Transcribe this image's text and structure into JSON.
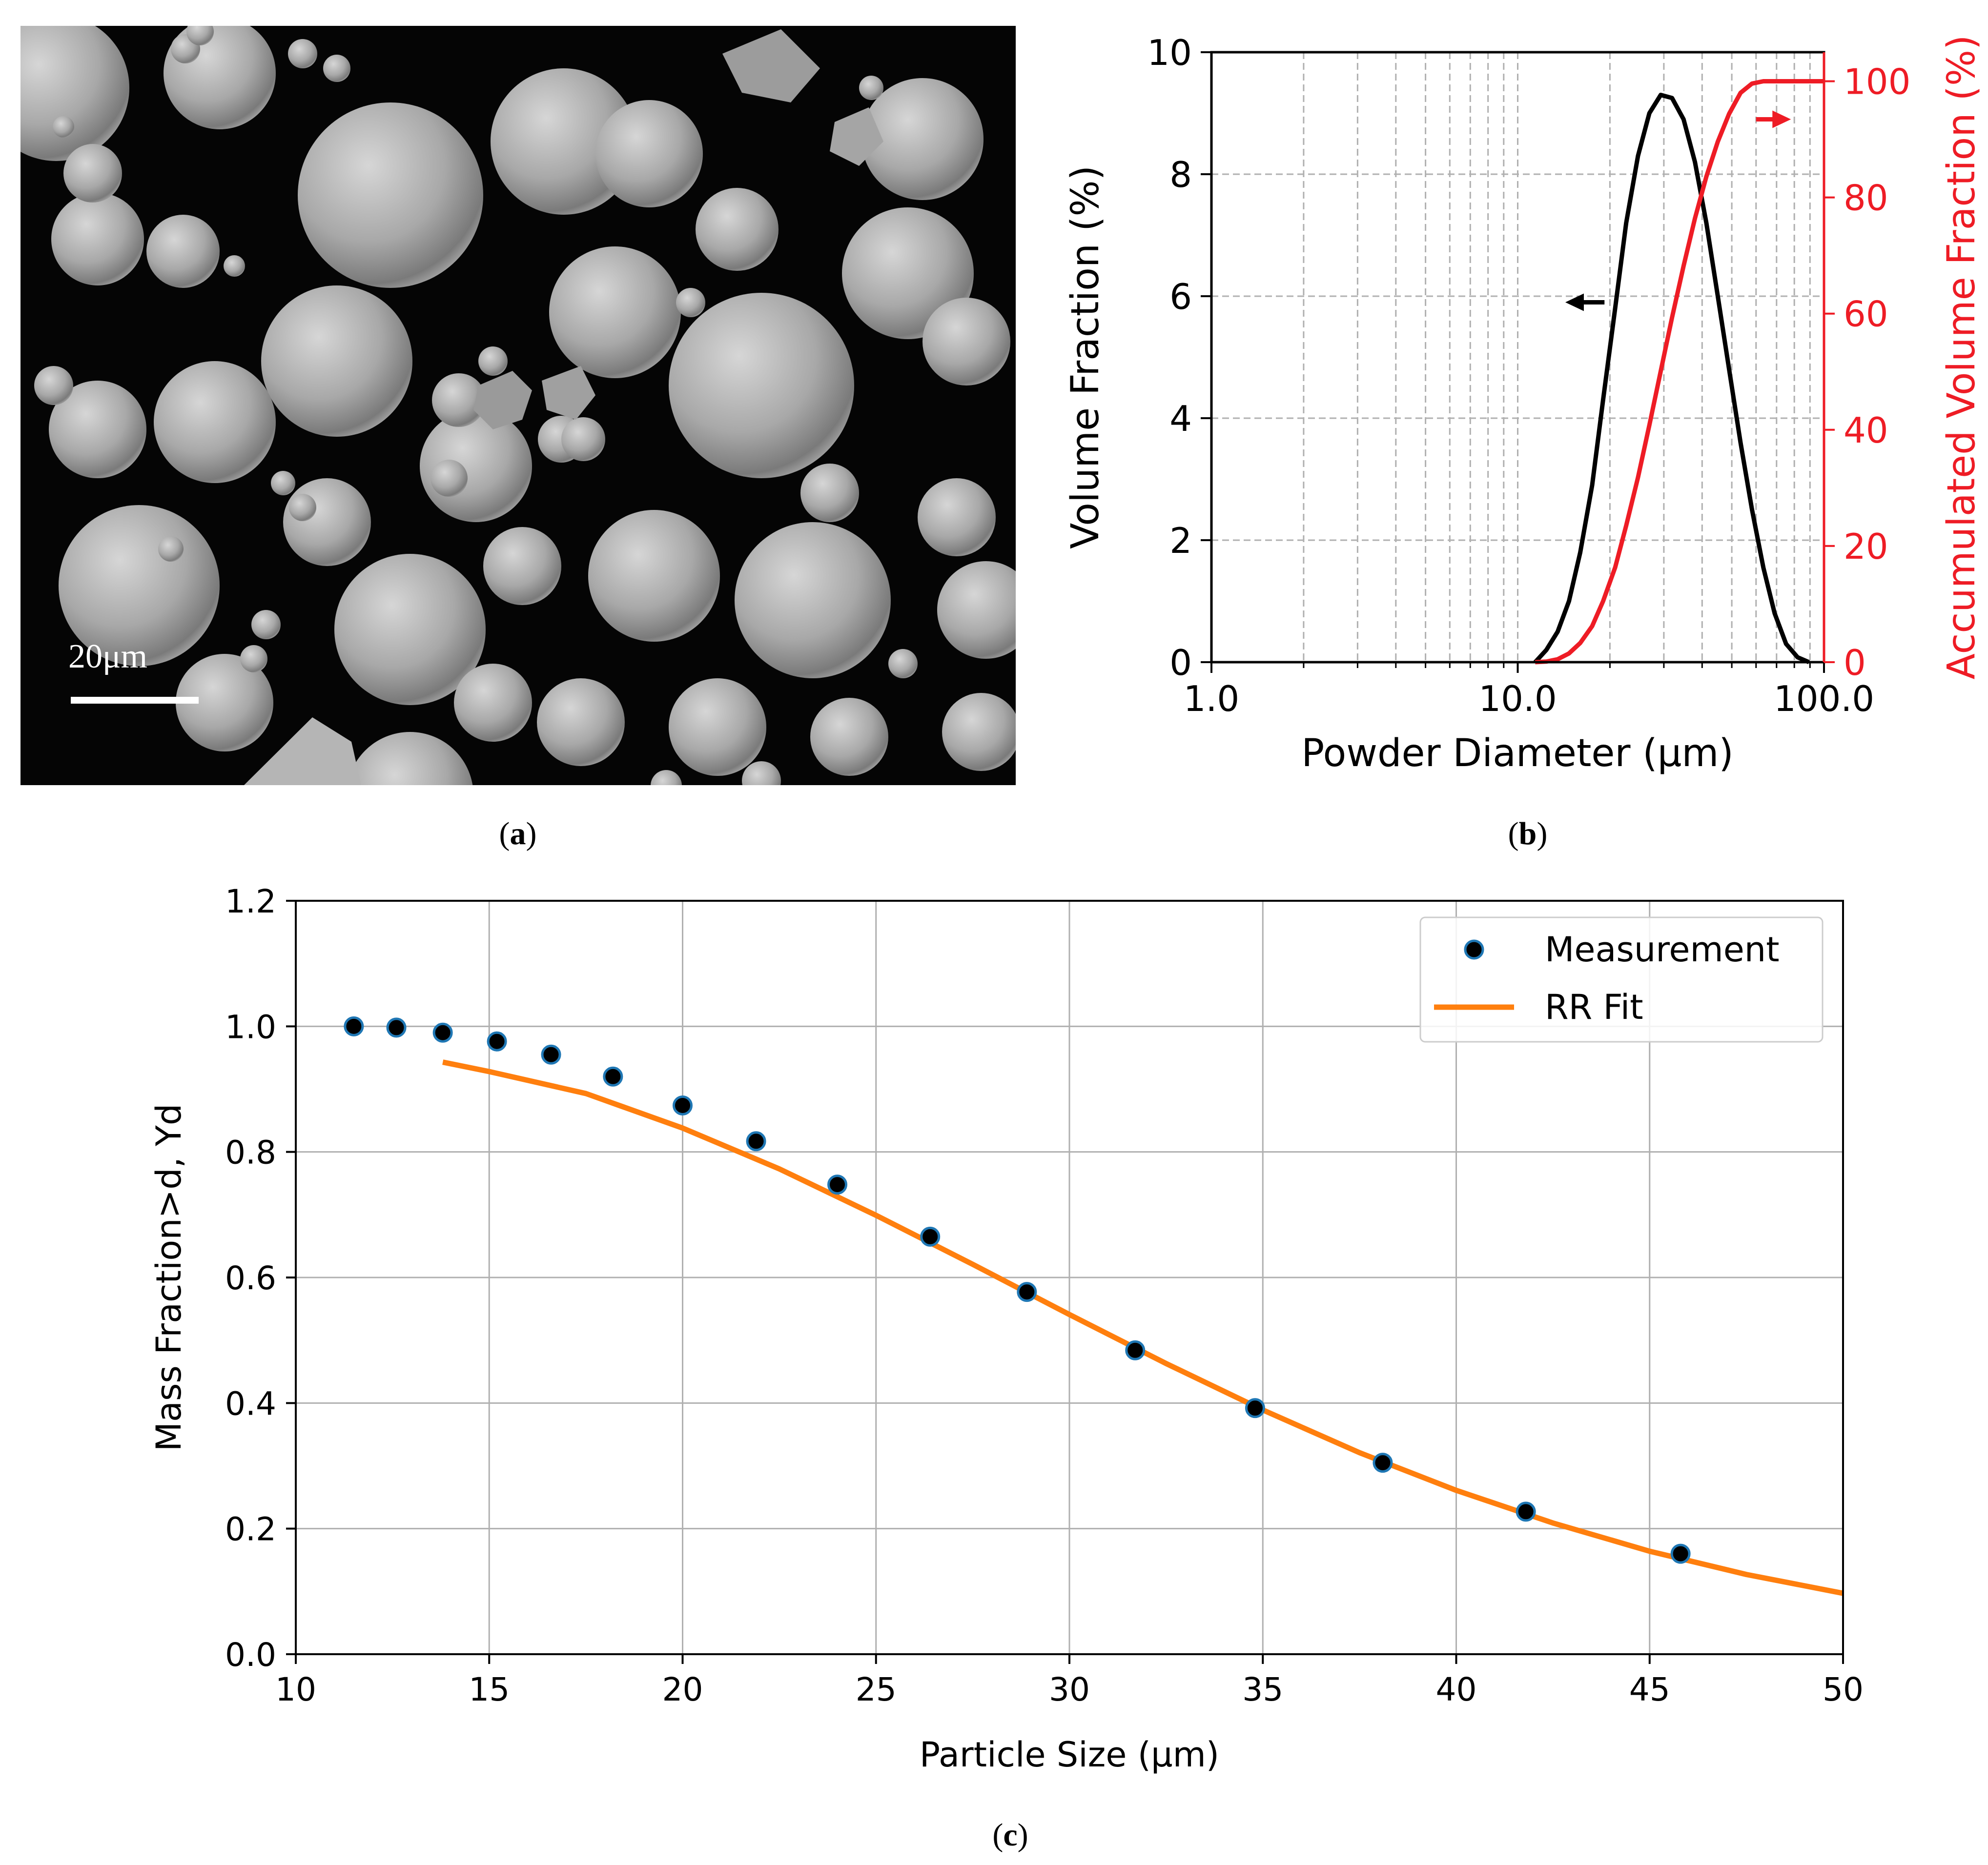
{
  "panels": {
    "a": {
      "label_letter": "a",
      "scale_bar_label": "20μm"
    },
    "b": {
      "label_letter": "b"
    },
    "c": {
      "label_letter": "c"
    }
  },
  "chart_data": [
    {
      "id": "b",
      "type": "line",
      "xscale": "log",
      "xlim": [
        1.0,
        100.0
      ],
      "xticks": [
        1.0,
        10.0,
        100.0
      ],
      "xtick_labels": [
        "1.0",
        "10.0",
        "100.0"
      ],
      "xlabel": "Powder Diameter (μm)",
      "ylabel": "Volume Fraction (%)",
      "ylim": [
        0,
        10
      ],
      "yticks": [
        0,
        2,
        4,
        6,
        8,
        10
      ],
      "ytick_labels": [
        "0",
        "2",
        "4",
        "6",
        "8",
        "10"
      ],
      "y2label": "Accumulated Volume Fraction (%)",
      "y2lim": [
        0,
        105
      ],
      "y2ticks": [
        0,
        20,
        40,
        60,
        80,
        100
      ],
      "y2tick_labels": [
        "0",
        "20",
        "40",
        "60",
        "80",
        "100"
      ],
      "grid": "dashed",
      "series": [
        {
          "name": "Volume Fraction",
          "axis": "left",
          "color": "#000000",
          "x": [
            11.4,
            12.4,
            13.5,
            14.7,
            16.0,
            17.5,
            19.0,
            20.8,
            22.6,
            24.7,
            26.9,
            29.3,
            31.9,
            34.8,
            37.9,
            41.3,
            45.0,
            49.0,
            53.4,
            58.2,
            63.4,
            69.0,
            75.2,
            82.0,
            89.3
          ],
          "values": [
            0.0,
            0.2,
            0.5,
            1.0,
            1.8,
            2.9,
            4.3,
            5.8,
            7.2,
            8.3,
            9.0,
            9.3,
            9.25,
            8.9,
            8.2,
            7.2,
            6.0,
            4.8,
            3.6,
            2.5,
            1.55,
            0.8,
            0.3,
            0.08,
            0.0
          ]
        },
        {
          "name": "Accumulated Volume Fraction",
          "axis": "right",
          "color": "#ee1c25",
          "x": [
            11.4,
            12.4,
            13.5,
            14.7,
            16.0,
            17.5,
            19.0,
            20.8,
            22.6,
            24.7,
            26.9,
            29.3,
            31.9,
            34.8,
            37.9,
            41.3,
            45.0,
            49.0,
            53.4,
            58.2,
            63.4,
            69.0,
            75.2,
            82.0,
            89.3,
            100.0
          ],
          "values": [
            0.0,
            0.1,
            0.5,
            1.5,
            3.3,
            6.2,
            10.5,
            16.3,
            23.5,
            31.8,
            40.8,
            50.1,
            59.3,
            68.2,
            76.4,
            83.6,
            89.6,
            94.4,
            98.0,
            99.6,
            100.0,
            100.0,
            100.0,
            100.0,
            100.0,
            100.0
          ]
        }
      ],
      "annotations": [
        {
          "type": "arrow",
          "direction": "left",
          "color": "#000000",
          "x_from": 19.2,
          "x_to": 14.3,
          "y": 5.9
        },
        {
          "type": "arrow",
          "direction": "right",
          "color": "#ee1c25",
          "x_from": 60.0,
          "x_to": 78.0,
          "y": 8.9
        }
      ]
    },
    {
      "id": "c",
      "type": "scatter+line",
      "xlabel": "Particle Size (μm)",
      "ylabel": "Mass Fraction>d, Yd",
      "xlim": [
        10,
        50
      ],
      "ylim": [
        0.0,
        1.2
      ],
      "xticks": [
        10,
        15,
        20,
        25,
        30,
        35,
        40,
        45,
        50
      ],
      "xtick_labels": [
        "10",
        "15",
        "20",
        "25",
        "30",
        "35",
        "40",
        "45",
        "50"
      ],
      "yticks": [
        0.0,
        0.2,
        0.4,
        0.6,
        0.8,
        1.0,
        1.2
      ],
      "ytick_labels": [
        "0.0",
        "0.2",
        "0.4",
        "0.6",
        "0.8",
        "1.0",
        "1.2"
      ],
      "grid": true,
      "legend": "top-right",
      "series": [
        {
          "name": "Measurement",
          "kind": "scatter",
          "color": "#000000",
          "edge_color": "#1f77b4",
          "x": [
            11.5,
            12.6,
            13.8,
            15.2,
            16.6,
            18.2,
            20.0,
            21.9,
            24.0,
            26.4,
            28.9,
            31.7,
            34.8,
            38.1,
            41.8,
            45.8
          ],
          "values": [
            1.0,
            0.998,
            0.99,
            0.976,
            0.955,
            0.92,
            0.874,
            0.817,
            0.748,
            0.665,
            0.577,
            0.484,
            0.392,
            0.305,
            0.227,
            0.16
          ]
        },
        {
          "name": "RR Fit",
          "kind": "line",
          "color": "#ff7f0e",
          "x": [
            13.8,
            15.0,
            17.5,
            20.0,
            22.5,
            25.0,
            27.5,
            30.0,
            32.5,
            35.0,
            37.5,
            40.0,
            42.5,
            45.0,
            47.5,
            50.0
          ],
          "values": [
            0.943,
            0.928,
            0.893,
            0.838,
            0.773,
            0.699,
            0.621,
            0.541,
            0.463,
            0.389,
            0.321,
            0.261,
            0.209,
            0.164,
            0.127,
            0.097
          ]
        }
      ]
    }
  ]
}
